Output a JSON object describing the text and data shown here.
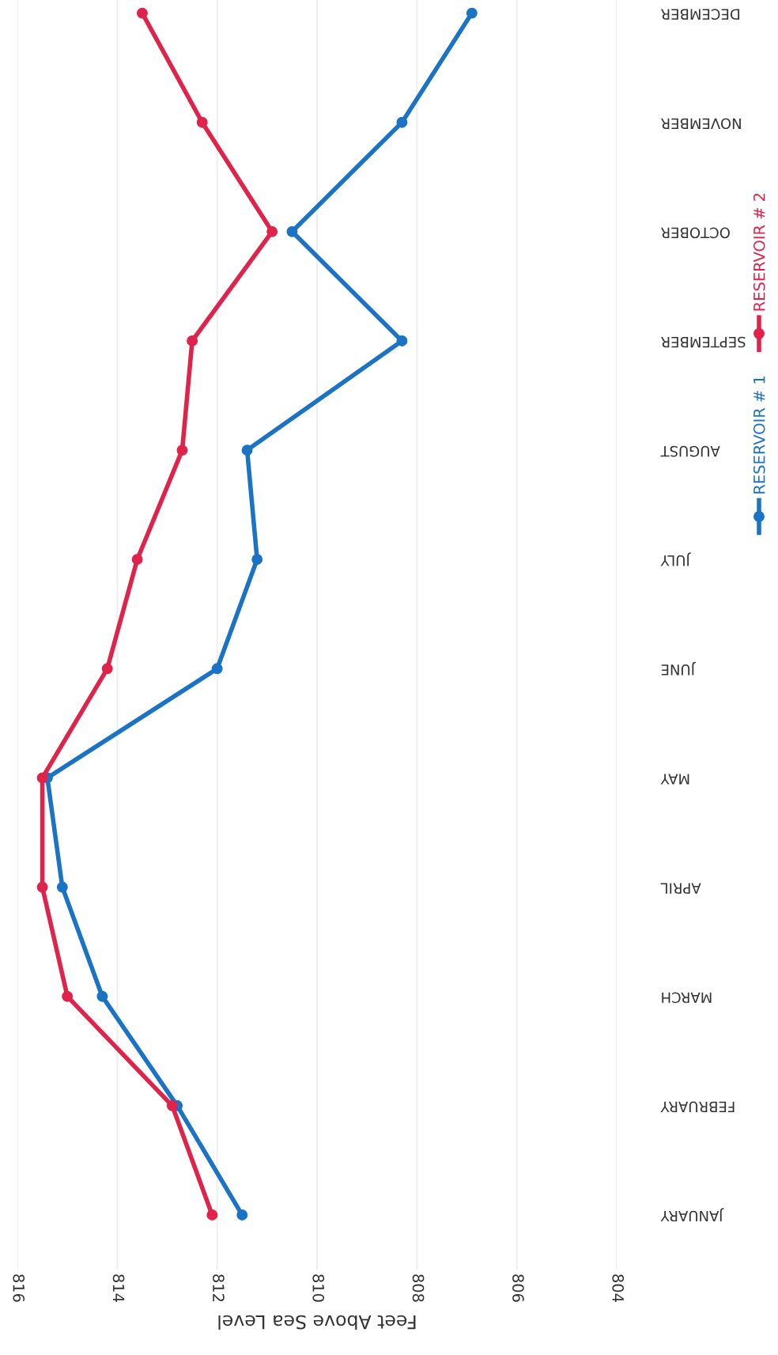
{
  "chart_data": {
    "type": "line",
    "orientation": "horizontal",
    "xlabel": "Feet Above Sea Level",
    "categories": [
      "DECEMBER",
      "NOVEMBER",
      "OCTOBER",
      "SEPTEMBER",
      "AUGUST",
      "JULY",
      "JUNE",
      "MAY",
      "APRIL",
      "MARCH",
      "FEBRUARY",
      "JANUARY"
    ],
    "series": [
      {
        "name": "RESERVOIR # 1",
        "color": "#1a73c4",
        "values": [
          806.9,
          808.3,
          810.5,
          808.3,
          811.4,
          811.2,
          812.0,
          815.4,
          815.1,
          814.3,
          812.8,
          811.5
        ]
      },
      {
        "name": "RESERVOIR # 2",
        "color": "#e0234a",
        "values": [
          813.5,
          812.3,
          810.9,
          812.5,
          812.7,
          813.6,
          814.2,
          815.5,
          815.5,
          815.0,
          812.9,
          812.1
        ]
      }
    ],
    "xlim": [
      816,
      804
    ],
    "xticks": [
      816,
      814,
      812,
      810,
      808,
      806,
      804
    ],
    "grid": "x",
    "legend": "right",
    "marker": "circle",
    "line_style": "solid"
  }
}
